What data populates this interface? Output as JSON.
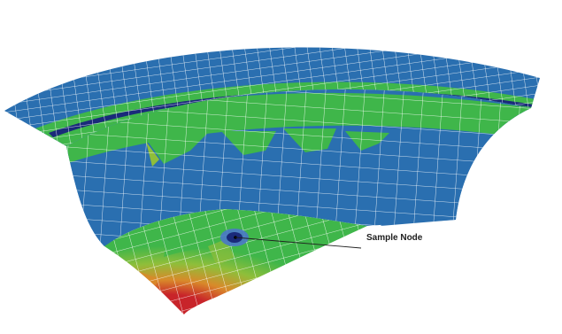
{
  "annotation": {
    "label": "Sample Node"
  },
  "legend_colors": {
    "blue": "#2a6fb0",
    "dark_blue": "#1a2a7a",
    "green": "#3fb64a",
    "yellow_green": "#8fbe3a",
    "orange": "#d9892a",
    "red": "#c8242a",
    "mesh_line": "#ffffff"
  }
}
